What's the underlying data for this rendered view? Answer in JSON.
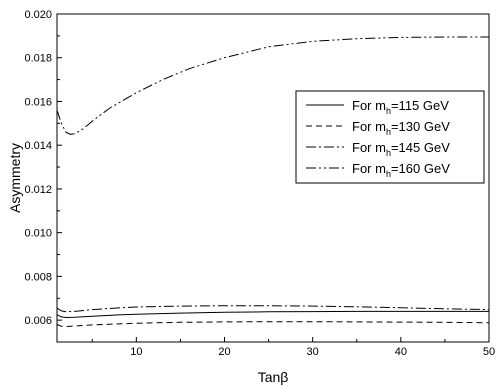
{
  "chart_data": {
    "type": "line",
    "xlabel": "Tanβ",
    "ylabel": "Asymmetry",
    "xlim": [
      1,
      50
    ],
    "ylim": [
      0.005,
      0.02
    ],
    "x_ticks": [
      10,
      20,
      30,
      40,
      50
    ],
    "y_ticks": [
      0.006,
      0.008,
      0.01,
      0.012,
      0.014,
      0.016,
      0.018,
      0.02
    ],
    "grid": false,
    "legend_position": "right",
    "series": [
      {
        "name": "For m_h=115 GeV",
        "label_parts": [
          "For m",
          "h",
          "=115 GeV"
        ],
        "dash": "solid",
        "x": [
          1,
          1.5,
          2,
          3,
          5,
          8,
          10,
          15,
          20,
          25,
          30,
          35,
          40,
          45,
          50
        ],
        "y": [
          0.00625,
          0.00615,
          0.00612,
          0.00613,
          0.00618,
          0.00624,
          0.00627,
          0.00632,
          0.00636,
          0.00638,
          0.00639,
          0.0064,
          0.0064,
          0.0064,
          0.0064
        ]
      },
      {
        "name": "For m_h=130 GeV",
        "label_parts": [
          "For m",
          "h",
          "=130 GeV"
        ],
        "dash": "dashed",
        "x": [
          1,
          1.5,
          2,
          3,
          5,
          8,
          10,
          15,
          20,
          25,
          30,
          35,
          40,
          45,
          50
        ],
        "y": [
          0.0058,
          0.00572,
          0.00571,
          0.00573,
          0.00578,
          0.00583,
          0.00586,
          0.0059,
          0.00592,
          0.00593,
          0.00593,
          0.00592,
          0.00591,
          0.0059,
          0.00588
        ]
      },
      {
        "name": "For m_h=145 GeV",
        "label_parts": [
          "For m",
          "h",
          "=145 GeV"
        ],
        "dash": "dashdot",
        "x": [
          1,
          1.5,
          2,
          3,
          5,
          8,
          10,
          15,
          20,
          25,
          30,
          35,
          40,
          45,
          50
        ],
        "y": [
          0.00655,
          0.00642,
          0.00638,
          0.0064,
          0.00648,
          0.00656,
          0.0066,
          0.00664,
          0.00666,
          0.00666,
          0.00664,
          0.00661,
          0.00657,
          0.00652,
          0.00648
        ]
      },
      {
        "name": "For m_h=160 GeV",
        "label_parts": [
          "For m",
          "h",
          "=160 GeV"
        ],
        "dash": "dashdotdot",
        "x": [
          1,
          1.5,
          2,
          2.5,
          3,
          4,
          5,
          7,
          10,
          13,
          16,
          20,
          25,
          30,
          35,
          40,
          45,
          50
        ],
        "y": [
          0.0156,
          0.015,
          0.0146,
          0.0145,
          0.01452,
          0.01475,
          0.0151,
          0.0157,
          0.0164,
          0.017,
          0.0175,
          0.018,
          0.0185,
          0.01875,
          0.01887,
          0.01893,
          0.01895,
          0.01895
        ]
      }
    ]
  }
}
